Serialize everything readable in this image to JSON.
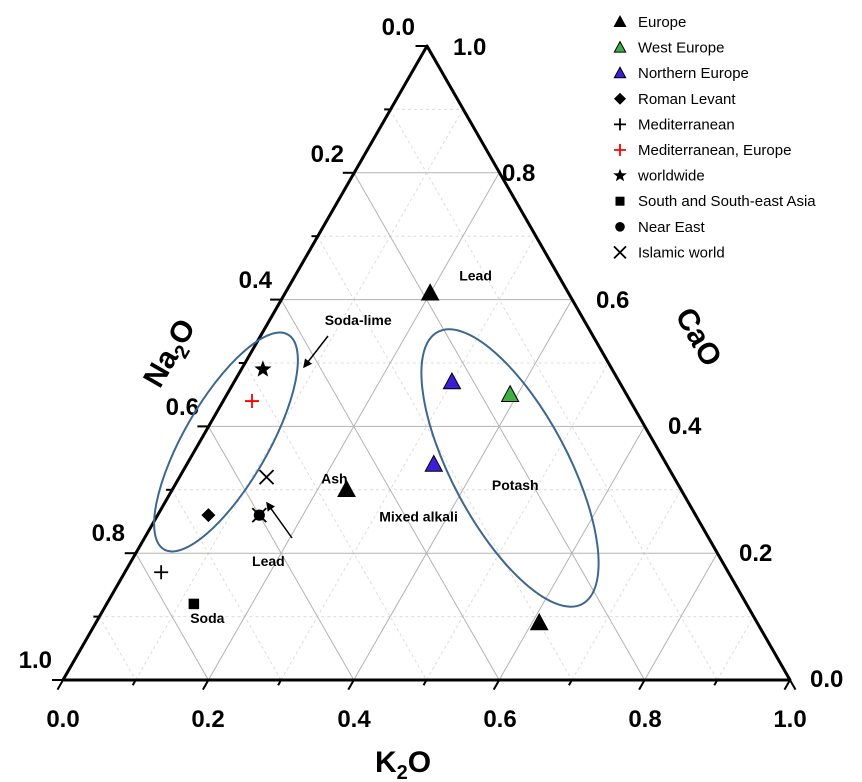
{
  "chart_data": {
    "type": "scatter",
    "subtype": "ternary",
    "axes": {
      "bottom": {
        "label_main": "K",
        "label_sub": "2",
        "label_tail": "O",
        "ticks": [
          "0.0",
          "0.2",
          "0.4",
          "0.6",
          "0.8",
          "1.0"
        ]
      },
      "left": {
        "label_main": "Na",
        "label_sub": "2",
        "label_tail": "O",
        "ticks": [
          "0.0",
          "0.2",
          "0.4",
          "0.6",
          "0.8",
          "1.0"
        ]
      },
      "right": {
        "label": "CaO",
        "ticks": [
          "1.0",
          "0.8",
          "0.6",
          "0.4",
          "0.2",
          "0.0"
        ]
      }
    },
    "grid": true,
    "legend_position": "top-right",
    "legend": [
      {
        "label": "Europe",
        "marker": "triangle",
        "color": "#000000"
      },
      {
        "label": "West Europe",
        "marker": "triangle",
        "color": "#3cb043"
      },
      {
        "label": "Northern Europe",
        "marker": "triangle",
        "color": "#3a1fd6"
      },
      {
        "label": "Roman Levant",
        "marker": "diamond",
        "color": "#000000"
      },
      {
        "label": "Mediterranean",
        "marker": "plus",
        "color": "#000000"
      },
      {
        "label": "Mediterranean, Europe",
        "marker": "plus",
        "color": "#ff0000"
      },
      {
        "label": "worldwide",
        "marker": "star",
        "color": "#000000"
      },
      {
        "label": "South and South-east Asia",
        "marker": "square",
        "color": "#000000"
      },
      {
        "label": "Near East",
        "marker": "circle",
        "color": "#000000"
      },
      {
        "label": "Islamic world",
        "marker": "cross",
        "color": "#000000"
      }
    ],
    "points": [
      {
        "series": "Europe",
        "k2o": 0.2,
        "cao": 0.61,
        "na2o": 0.19
      },
      {
        "series": "Europe",
        "k2o": 0.24,
        "cao": 0.3,
        "na2o": 0.46
      },
      {
        "series": "Europe",
        "k2o": 0.61,
        "cao": 0.09,
        "na2o": 0.3
      },
      {
        "series": "West Europe",
        "k2o": 0.39,
        "cao": 0.45,
        "na2o": 0.16
      },
      {
        "series": "Northern Europe",
        "k2o": 0.3,
        "cao": 0.47,
        "na2o": 0.23
      },
      {
        "series": "Northern Europe",
        "k2o": 0.34,
        "cao": 0.34,
        "na2o": 0.32
      },
      {
        "series": "Roman Levant",
        "k2o": 0.07,
        "cao": 0.26,
        "na2o": 0.67
      },
      {
        "series": "Mediterranean",
        "k2o": 0.05,
        "cao": 0.17,
        "na2o": 0.78
      },
      {
        "series": "Mediterranean, Europe",
        "k2o": 0.04,
        "cao": 0.44,
        "na2o": 0.52
      },
      {
        "series": "worldwide",
        "k2o": 0.03,
        "cao": 0.49,
        "na2o": 0.48
      },
      {
        "series": "South and South-east Asia",
        "k2o": 0.12,
        "cao": 0.12,
        "na2o": 0.76
      },
      {
        "series": "Near East",
        "k2o": 0.14,
        "cao": 0.26,
        "na2o": 0.6
      },
      {
        "series": "Islamic world",
        "k2o": 0.12,
        "cao": 0.32,
        "na2o": 0.56
      },
      {
        "series": "Islamic world",
        "k2o": 0.14,
        "cao": 0.26,
        "na2o": 0.6
      }
    ],
    "annotations": [
      {
        "text": "Lead",
        "k2o": 0.23,
        "cao": 0.63
      },
      {
        "text": "Soda-lime",
        "k2o": 0.08,
        "cao": 0.56
      },
      {
        "text": "Ash",
        "k2o": 0.2,
        "cao": 0.31
      },
      {
        "text": "Mixed alkali",
        "k2o": 0.31,
        "cao": 0.25
      },
      {
        "text": "Potash",
        "k2o": 0.44,
        "cao": 0.3
      },
      {
        "text": "Lead",
        "k2o": 0.17,
        "cao": 0.18
      },
      {
        "text": "Soda",
        "k2o": 0.13,
        "cao": 0.09
      }
    ],
    "ellipses": [
      {
        "name": "soda-lime-region",
        "color": "#3d6690"
      },
      {
        "name": "potash-region",
        "color": "#3d6690"
      }
    ]
  }
}
